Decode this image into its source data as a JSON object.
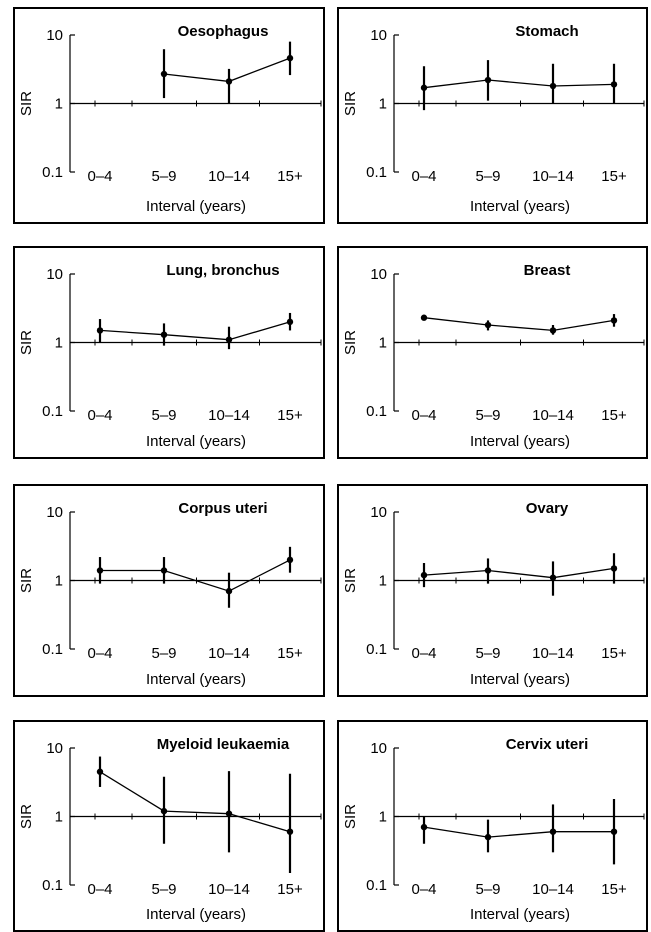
{
  "chart_data": [
    {
      "type": "line",
      "title": "Oesophagus",
      "xlabel": "Interval (years)",
      "ylabel": "SIR",
      "yscale": "log",
      "ylim": [
        0.1,
        10
      ],
      "yticks": [
        "0.1",
        "1",
        "10"
      ],
      "categories": [
        "0–4",
        "5–9",
        "10–14",
        "15+"
      ],
      "values": [
        null,
        2.7,
        2.1,
        4.6
      ],
      "ci": [
        [
          null,
          null
        ],
        [
          1.2,
          6.2
        ],
        [
          1.0,
          3.2
        ],
        [
          2.6,
          8.0
        ]
      ]
    },
    {
      "type": "line",
      "title": "Stomach",
      "xlabel": "Interval (years)",
      "ylabel": "SIR",
      "yscale": "log",
      "ylim": [
        0.1,
        10
      ],
      "yticks": [
        "0.1",
        "1",
        "10"
      ],
      "categories": [
        "0–4",
        "5–9",
        "10–14",
        "15+"
      ],
      "values": [
        1.7,
        2.2,
        1.8,
        1.9
      ],
      "ci": [
        [
          0.8,
          3.5
        ],
        [
          1.1,
          4.3
        ],
        [
          1.0,
          3.8
        ],
        [
          1.0,
          3.8
        ]
      ]
    },
    {
      "type": "line",
      "title": "Lung, bronchus",
      "xlabel": "Interval (years)",
      "ylabel": "SIR",
      "yscale": "log",
      "ylim": [
        0.1,
        10
      ],
      "yticks": [
        "0.1",
        "1",
        "10"
      ],
      "categories": [
        "0–4",
        "5–9",
        "10–14",
        "15+"
      ],
      "values": [
        1.5,
        1.3,
        1.1,
        2.0
      ],
      "ci": [
        [
          1.0,
          2.2
        ],
        [
          0.9,
          1.9
        ],
        [
          0.8,
          1.7
        ],
        [
          1.5,
          2.7
        ]
      ]
    },
    {
      "type": "line",
      "title": "Breast",
      "xlabel": "Interval (years)",
      "ylabel": "SIR",
      "yscale": "log",
      "ylim": [
        0.1,
        10
      ],
      "yticks": [
        "0.1",
        "1",
        "10"
      ],
      "categories": [
        "0–4",
        "5–9",
        "10–14",
        "15+"
      ],
      "values": [
        2.3,
        1.8,
        1.5,
        2.1
      ],
      "ci": [
        [
          2.1,
          2.5
        ],
        [
          1.5,
          2.1
        ],
        [
          1.3,
          1.8
        ],
        [
          1.7,
          2.6
        ]
      ]
    },
    {
      "type": "line",
      "title": "Corpus uteri",
      "xlabel": "Interval (years)",
      "ylabel": "SIR",
      "yscale": "log",
      "ylim": [
        0.1,
        10
      ],
      "yticks": [
        "0.1",
        "1",
        "10"
      ],
      "categories": [
        "0–4",
        "5–9",
        "10–14",
        "15+"
      ],
      "values": [
        1.4,
        1.4,
        0.7,
        2.0
      ],
      "ci": [
        [
          0.9,
          2.2
        ],
        [
          0.9,
          2.2
        ],
        [
          0.4,
          1.3
        ],
        [
          1.3,
          3.1
        ]
      ]
    },
    {
      "type": "line",
      "title": "Ovary",
      "xlabel": "Interval (years)",
      "ylabel": "SIR",
      "yscale": "log",
      "ylim": [
        0.1,
        10
      ],
      "yticks": [
        "0.1",
        "1",
        "10"
      ],
      "categories": [
        "0–4",
        "5–9",
        "10–14",
        "15+"
      ],
      "values": [
        1.2,
        1.4,
        1.1,
        1.5
      ],
      "ci": [
        [
          0.8,
          1.8
        ],
        [
          0.9,
          2.1
        ],
        [
          0.6,
          1.9
        ],
        [
          0.9,
          2.5
        ]
      ]
    },
    {
      "type": "line",
      "title": "Myeloid leukaemia",
      "xlabel": "Interval (years)",
      "ylabel": "SIR",
      "yscale": "log",
      "ylim": [
        0.1,
        10
      ],
      "yticks": [
        "0.1",
        "1",
        "10"
      ],
      "categories": [
        "0–4",
        "5–9",
        "10–14",
        "15+"
      ],
      "values": [
        4.5,
        1.2,
        1.1,
        0.6
      ],
      "ci": [
        [
          2.7,
          7.5
        ],
        [
          0.4,
          3.8
        ],
        [
          0.3,
          4.6
        ],
        [
          0.15,
          4.2
        ]
      ]
    },
    {
      "type": "line",
      "title": "Cervix uteri",
      "xlabel": "Interval (years)",
      "ylabel": "SIR",
      "yscale": "log",
      "ylim": [
        0.1,
        10
      ],
      "yticks": [
        "0.1",
        "1",
        "10"
      ],
      "categories": [
        "0–4",
        "5–9",
        "10–14",
        "15+"
      ],
      "values": [
        0.7,
        0.5,
        0.6,
        0.6
      ],
      "ci": [
        [
          0.4,
          1.0
        ],
        [
          0.3,
          0.9
        ],
        [
          0.3,
          1.5
        ],
        [
          0.2,
          1.8
        ]
      ]
    }
  ]
}
